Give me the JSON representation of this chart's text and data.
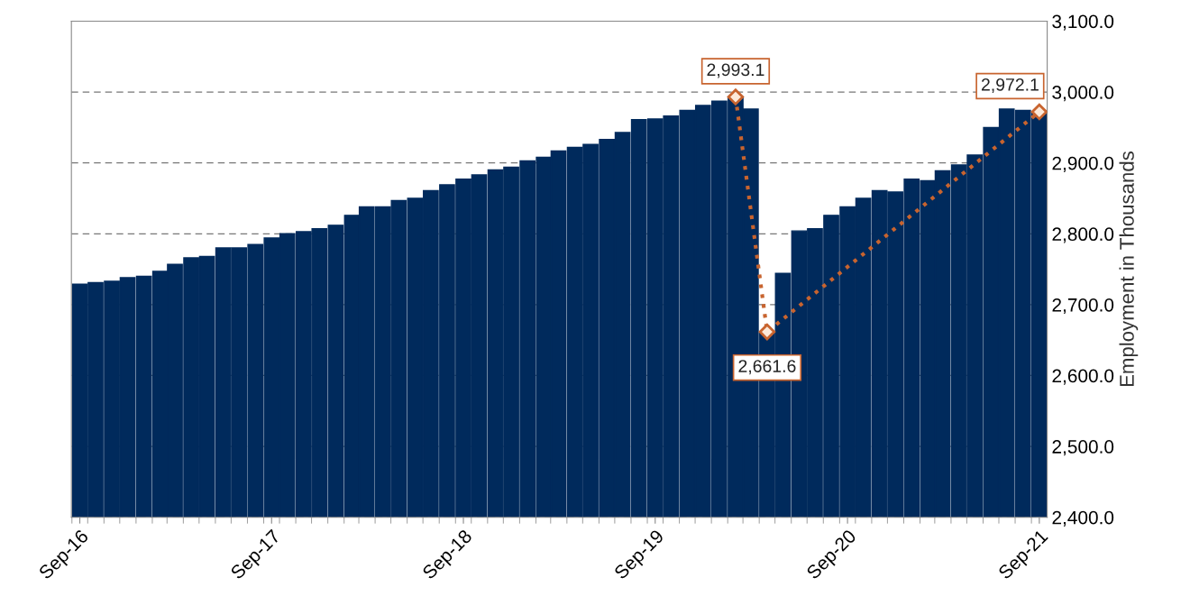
{
  "chart_data": {
    "type": "bar",
    "ylabel": "Employment in Thousands",
    "x": [
      "2016-09",
      "2016-10",
      "2016-11",
      "2016-12",
      "2017-01",
      "2017-02",
      "2017-03",
      "2017-04",
      "2017-05",
      "2017-06",
      "2017-07",
      "2017-08",
      "2017-09",
      "2017-10",
      "2017-11",
      "2017-12",
      "2018-01",
      "2018-02",
      "2018-03",
      "2018-04",
      "2018-05",
      "2018-06",
      "2018-07",
      "2018-08",
      "2018-09",
      "2018-10",
      "2018-11",
      "2018-12",
      "2019-01",
      "2019-02",
      "2019-03",
      "2019-04",
      "2019-05",
      "2019-06",
      "2019-07",
      "2019-08",
      "2019-09",
      "2019-10",
      "2019-11",
      "2019-12",
      "2020-01",
      "2020-02",
      "2020-03",
      "2020-04",
      "2020-05",
      "2020-06",
      "2020-07",
      "2020-08",
      "2020-09",
      "2020-10",
      "2020-11",
      "2020-12",
      "2021-01",
      "2021-02",
      "2021-03",
      "2021-04",
      "2021-05",
      "2021-06",
      "2021-07",
      "2021-08",
      "2021-09"
    ],
    "series": [
      {
        "color": "#002a5c",
        "values": [
          2729,
          2731,
          2733,
          2738,
          2740,
          2747,
          2757,
          2766,
          2768,
          2780,
          2780,
          2785,
          2794,
          2800,
          2803,
          2807,
          2812,
          2826,
          2838,
          2838,
          2847,
          2850,
          2861,
          2869,
          2877,
          2883,
          2890,
          2894,
          2903,
          2908,
          2917,
          2922,
          2926,
          2933,
          2943,
          2961,
          2962,
          2966,
          2974,
          2981,
          2987,
          2993.1,
          2976,
          2661.6,
          2744,
          2804,
          2807,
          2826,
          2838,
          2850,
          2861,
          2859,
          2877,
          2875,
          2889,
          2897,
          2911,
          2950,
          2976,
          2974,
          2972.1
        ]
      },
      {
        "type": "line",
        "color": "#c8642f",
        "x": [
          "2020-02",
          "2020-04",
          "2021-09"
        ],
        "values": [
          2993.1,
          2661.6,
          2972.1
        ],
        "marker": "diamond",
        "line_style": "dotted",
        "data_labels": true,
        "value_labels": [
          "2,993.1",
          "2,661.6",
          "2,972.1"
        ]
      }
    ],
    "xlim": [
      "2016-08-16",
      "2021-09-16"
    ],
    "xticks": [
      {
        "value": "2016-09",
        "label": "Sep-16"
      },
      {
        "value": "2017-09",
        "label": "Sep-17"
      },
      {
        "value": "2018-09",
        "label": "Sep-18"
      },
      {
        "value": "2019-09",
        "label": "Sep-19"
      },
      {
        "value": "2020-09",
        "label": "Sep-20"
      },
      {
        "value": "2021-09",
        "label": "Sep-21"
      }
    ],
    "ylim": [
      2400,
      3100
    ],
    "yticks": [
      {
        "value": 2400,
        "label": "2,400.0"
      },
      {
        "value": 2500,
        "label": "2,500.0"
      },
      {
        "value": 2600,
        "label": "2,600.0"
      },
      {
        "value": 2700,
        "label": "2,700.0"
      },
      {
        "value": 2800,
        "label": "2,800.0"
      },
      {
        "value": 2900,
        "label": "2,900.0"
      },
      {
        "value": 3000,
        "label": "3,000.0"
      },
      {
        "value": 3100,
        "label": "3,100.0"
      }
    ],
    "grid": "y"
  }
}
